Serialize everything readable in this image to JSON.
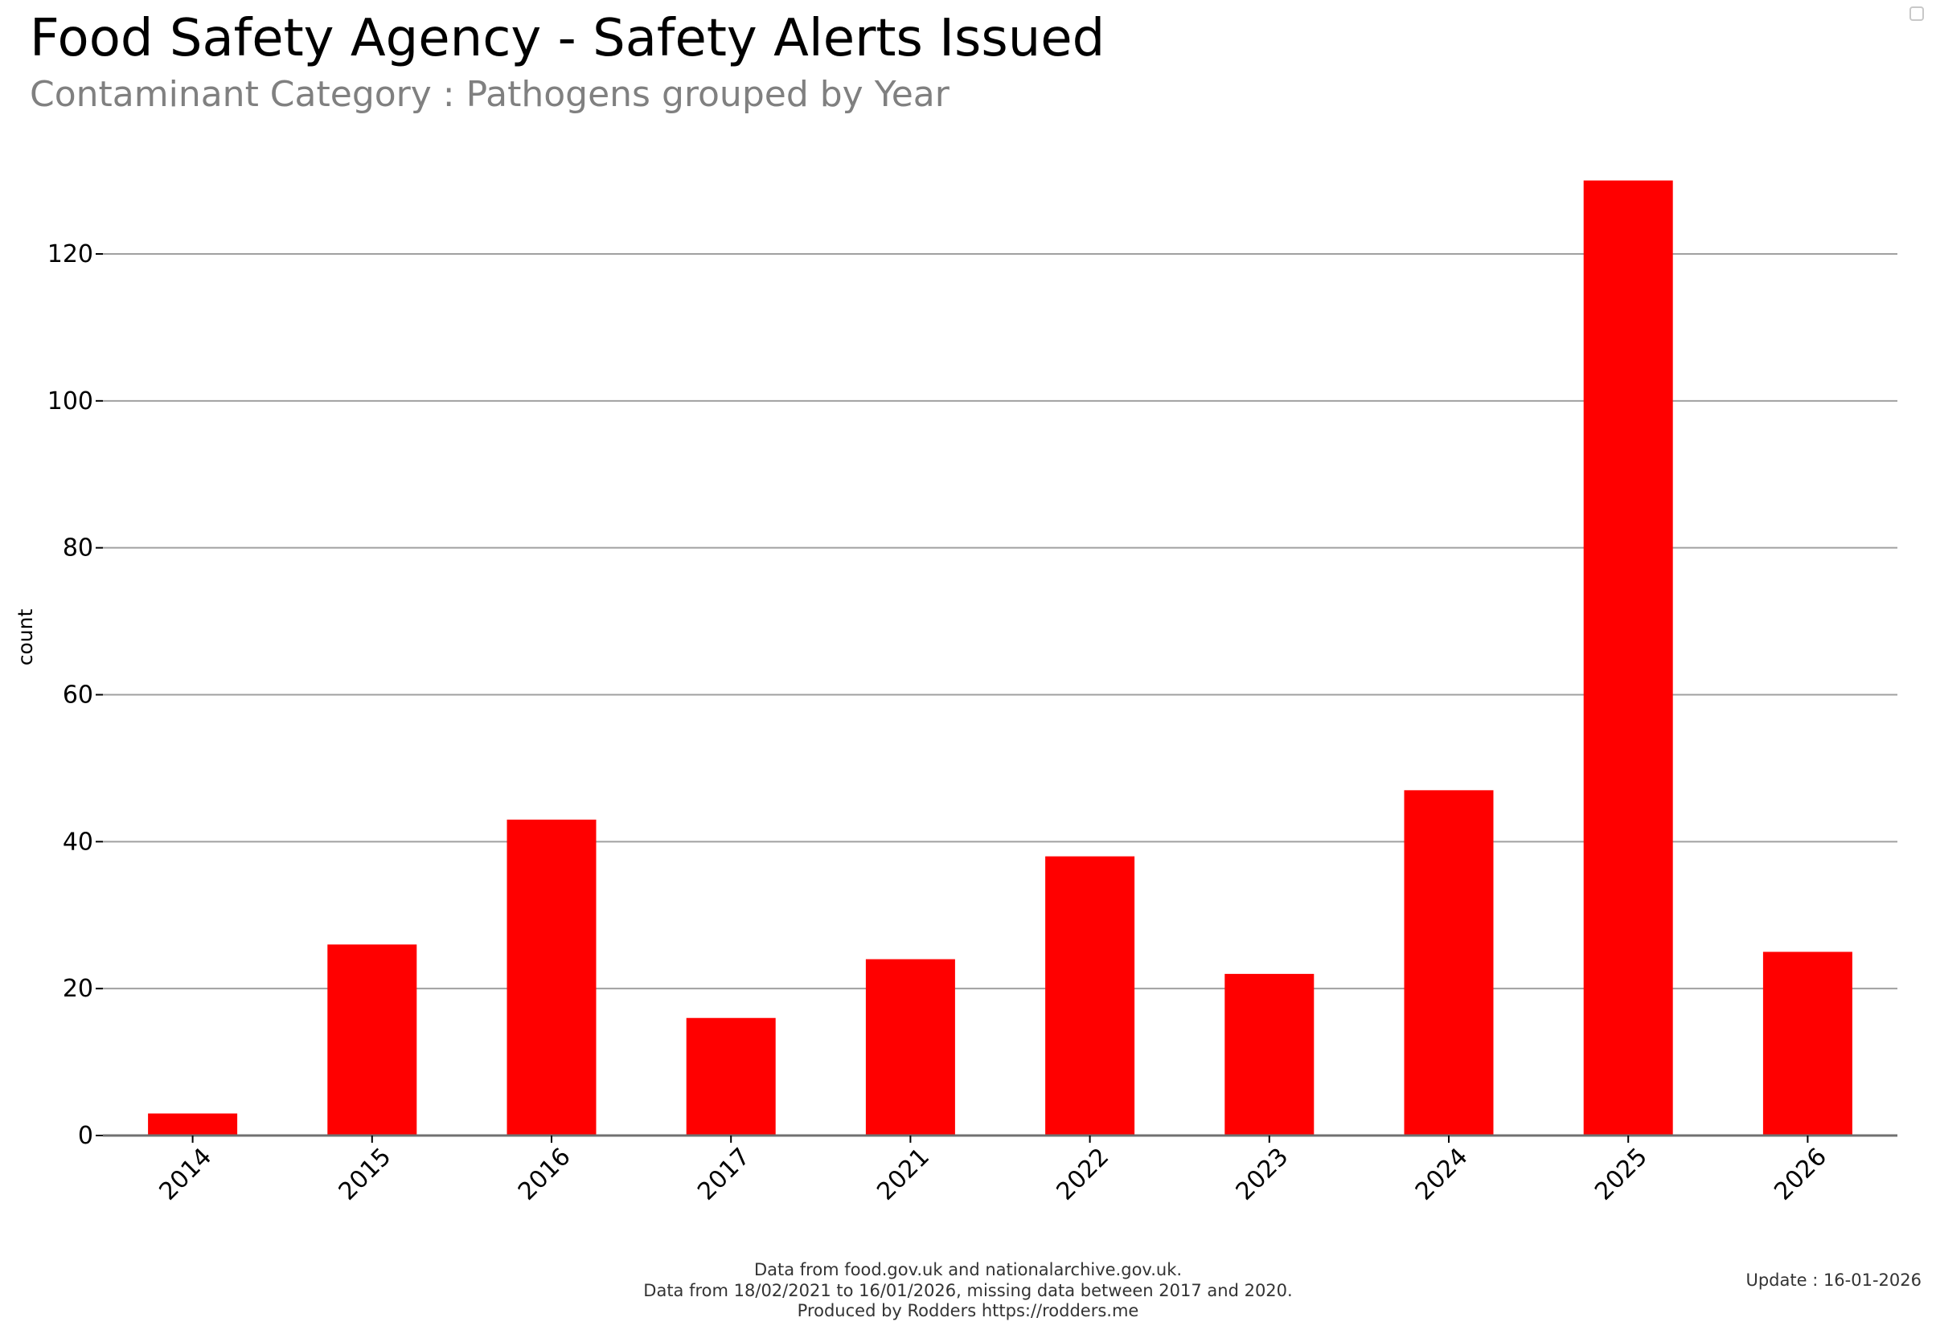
{
  "title": "Food Safety Agency - Safety Alerts Issued",
  "subtitle": "Contaminant Category : Pathogens grouped by Year",
  "footnotes": [
    "Data from food.gov.uk and nationalarchive.gov.uk.",
    "Data from 18/02/2021 to 16/01/2026, missing data between 2017 and 2020.",
    "Produced by Rodders https://rodders.me"
  ],
  "update": "Update : 16-01-2026",
  "colors": {
    "bar": "#ff0000",
    "grid": "#a0a0a0",
    "axis": "#707070"
  },
  "chart_data": {
    "type": "bar",
    "categories": [
      "2014",
      "2015",
      "2016",
      "2017",
      "2021",
      "2022",
      "2023",
      "2024",
      "2025",
      "2026"
    ],
    "values": [
      3,
      26,
      43,
      16,
      24,
      38,
      22,
      47,
      130,
      25
    ],
    "title": "Food Safety Agency - Safety Alerts Issued",
    "subtitle": "Contaminant Category : Pathogens grouped by Year",
    "xlabel": "",
    "ylabel": "count",
    "ylim": [
      0,
      135
    ],
    "yticks": [
      0,
      20,
      40,
      60,
      80,
      100,
      120
    ],
    "grid": "horizontal",
    "legend": "none"
  }
}
